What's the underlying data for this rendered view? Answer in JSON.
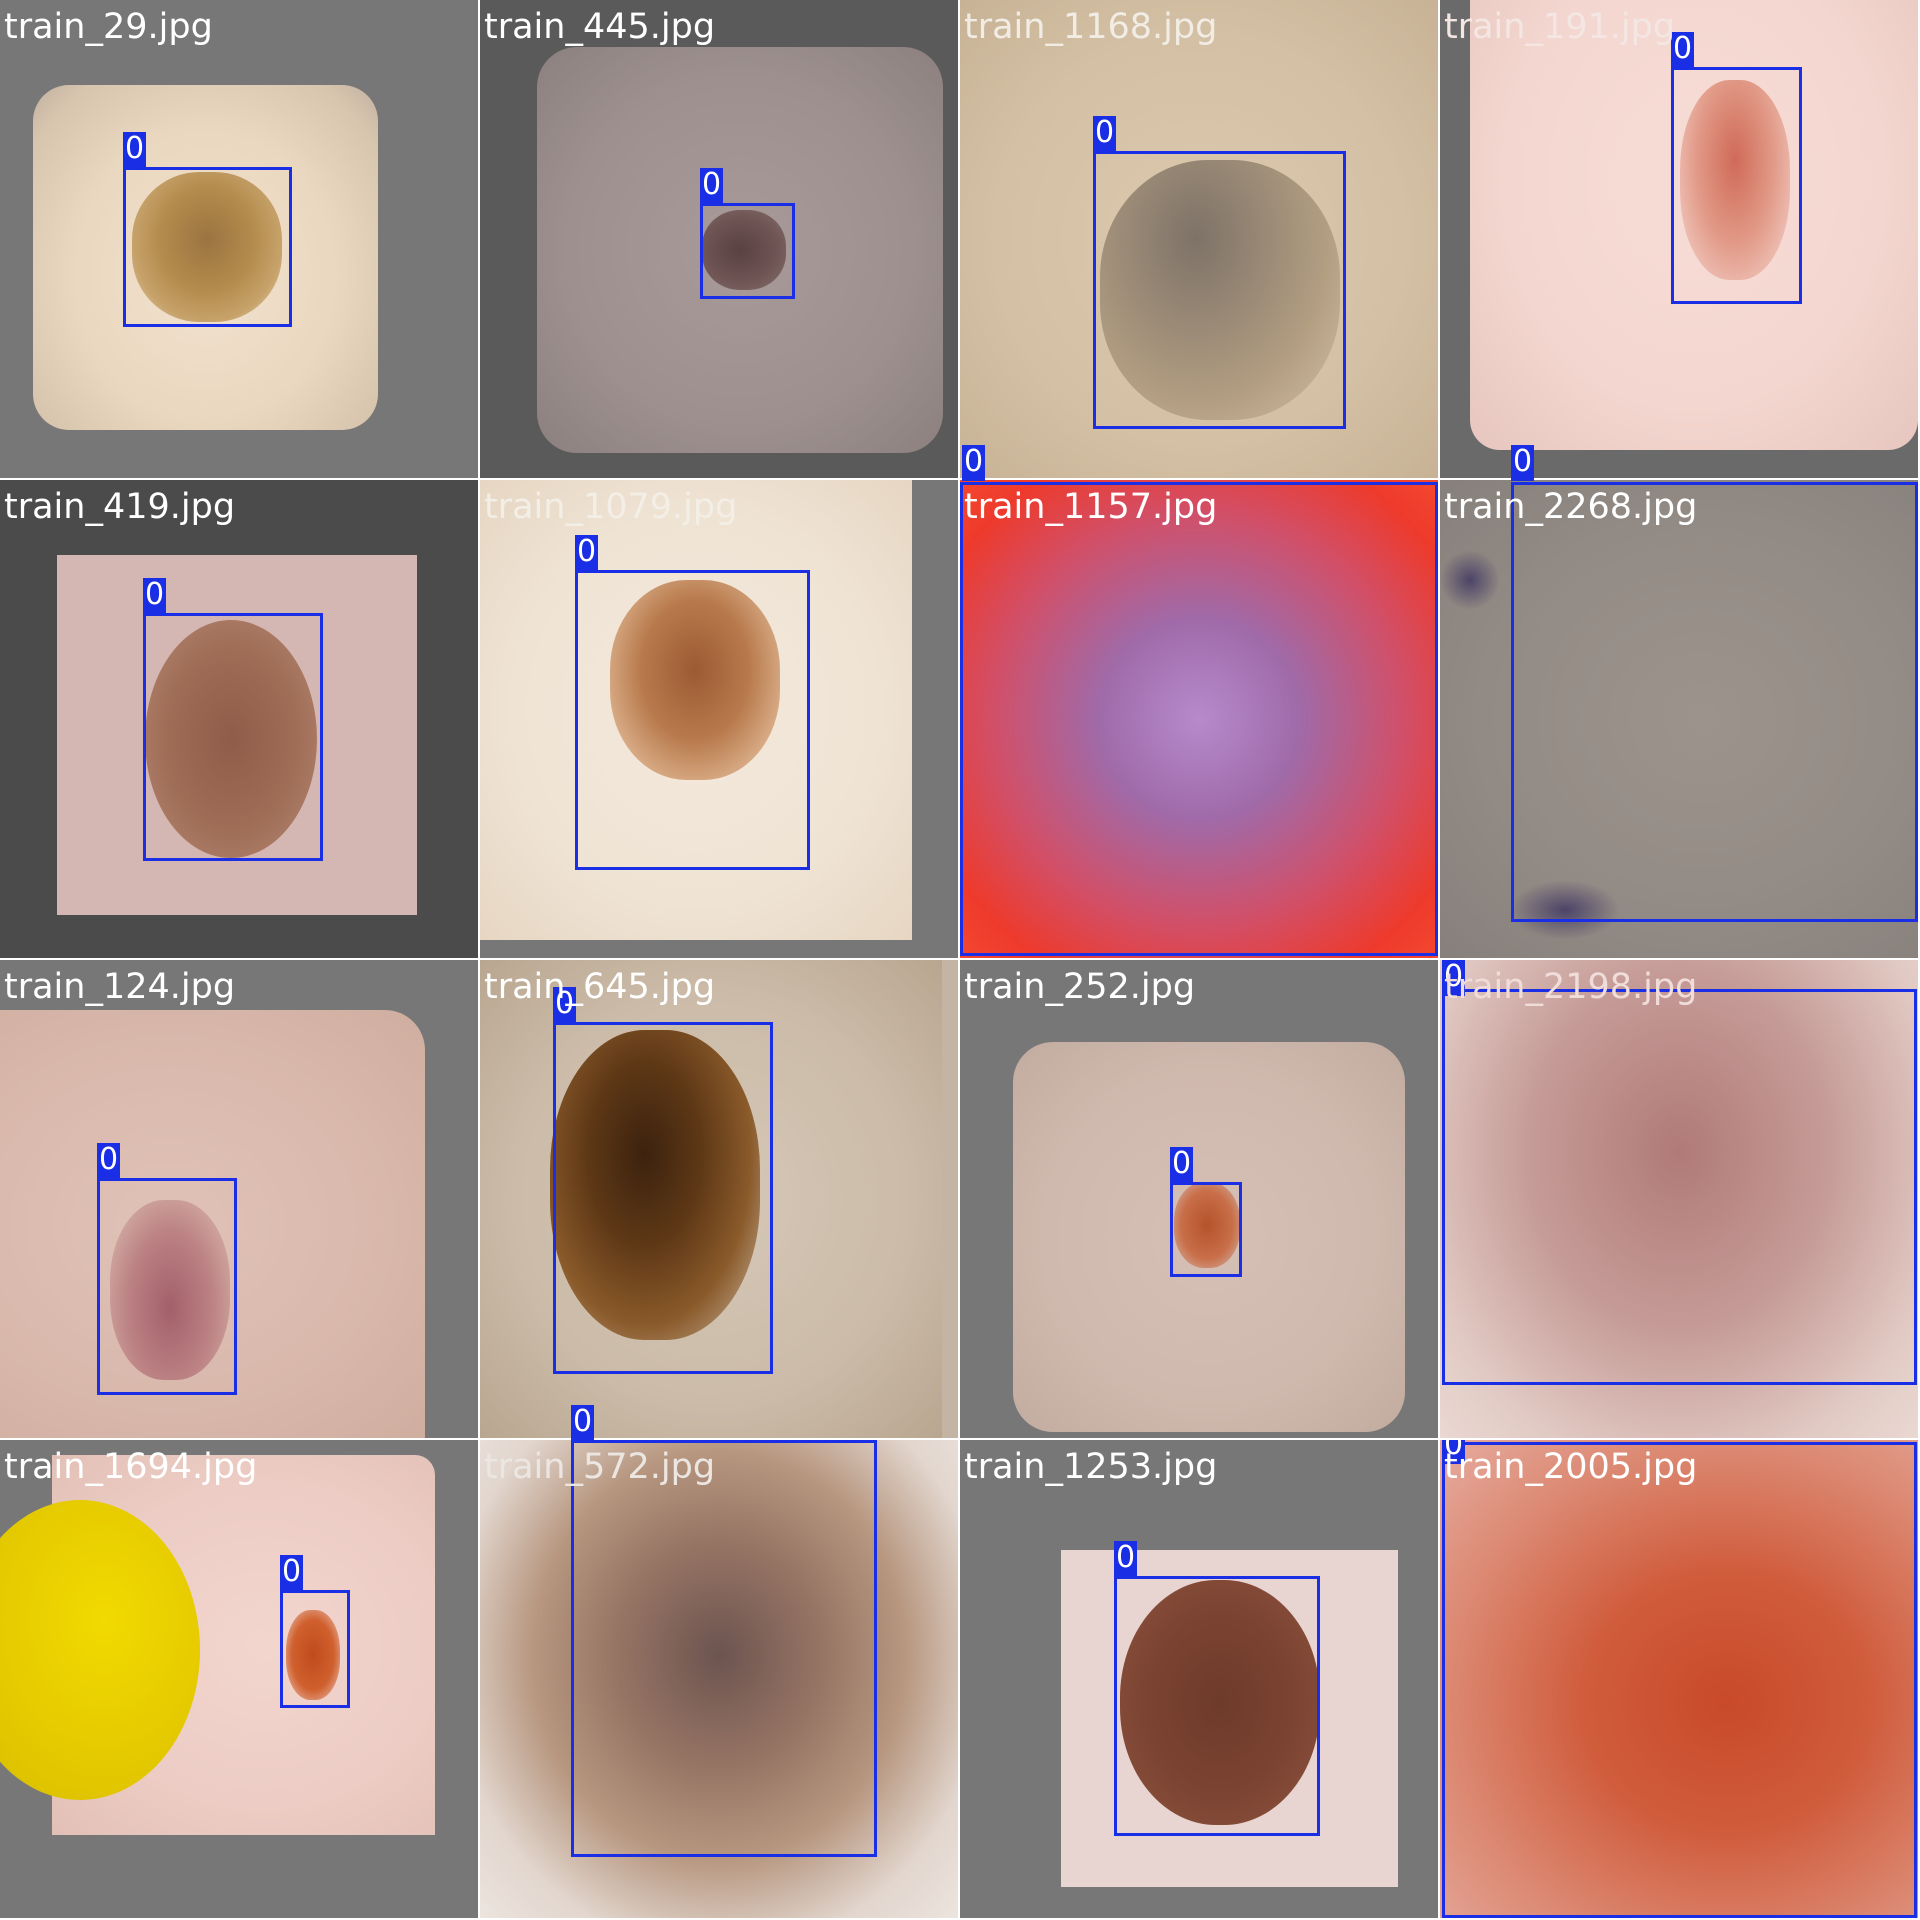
{
  "colors": {
    "box": "#1a2ee6",
    "label_text": "#ffffff"
  },
  "tiles": [
    {
      "filename": "train_29.jpg",
      "label_color": "#ffffff",
      "box_label": "0"
    },
    {
      "filename": "train_445.jpg",
      "label_color": "#ffffff",
      "box_label": "0"
    },
    {
      "filename": "train_1168.jpg",
      "label_color": "#f1ece4",
      "box_label": "0"
    },
    {
      "filename": "train_191.jpg",
      "label_color": "#f4e6e2",
      "box_label": "0"
    },
    {
      "filename": "train_419.jpg",
      "label_color": "#ffffff",
      "box_label": "0"
    },
    {
      "filename": "train_1079.jpg",
      "label_color": "#f3eee6",
      "box_label": "0"
    },
    {
      "filename": "train_1157.jpg",
      "label_color": "#ffffff",
      "box_label": "0"
    },
    {
      "filename": "train_2268.jpg",
      "label_color": "#ffffff",
      "box_label": "0"
    },
    {
      "filename": "train_124.jpg",
      "label_color": "#ffffff",
      "box_label": "0"
    },
    {
      "filename": "train_645.jpg",
      "label_color": "#ffffff",
      "box_label": "0"
    },
    {
      "filename": "train_252.jpg",
      "label_color": "#ffffff",
      "box_label": "0"
    },
    {
      "filename": "train_2198.jpg",
      "label_color": "#f0dcd8",
      "box_label": "0"
    },
    {
      "filename": "train_1694.jpg",
      "label_color": "#ffffff",
      "box_label": "0"
    },
    {
      "filename": "train_572.jpg",
      "label_color": "#ece6e2",
      "box_label": "0"
    },
    {
      "filename": "train_1253.jpg",
      "label_color": "#ffffff",
      "box_label": "0"
    },
    {
      "filename": "train_2005.jpg",
      "label_color": "#ffffff",
      "box_label": "0"
    }
  ]
}
